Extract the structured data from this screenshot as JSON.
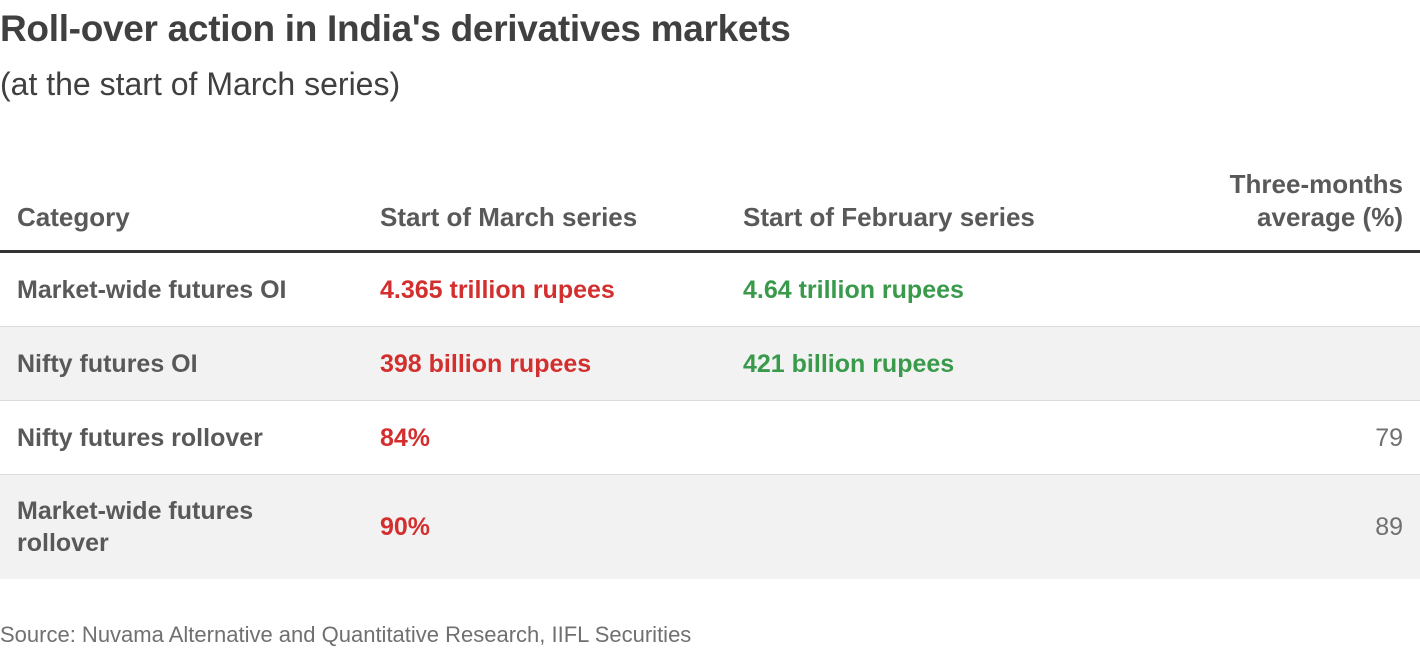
{
  "title": "Roll-over action in India's derivatives markets",
  "subtitle": "(at the start of March series)",
  "source": "Source: Nuvama Alternative and Quantitative Research, IIFL Securities",
  "colors": {
    "march": "#d32f2f",
    "february": "#3a9a4b",
    "header_rule": "#333333",
    "row_shade": "#f2f2f2"
  },
  "chart_data": {
    "type": "table",
    "columns": [
      "Category",
      "Start of March series",
      "Start of February series",
      "Three-months average (%)"
    ],
    "rows": [
      {
        "category": "Market-wide futures OI",
        "march": "4.365 trillion rupees",
        "february": "4.64 trillion rupees",
        "avg": ""
      },
      {
        "category": "Nifty futures OI",
        "march": "398 billion rupees",
        "february": "421 billion rupees",
        "avg": ""
      },
      {
        "category": "Nifty futures rollover",
        "march": "84%",
        "february": "",
        "avg": "79"
      },
      {
        "category": "Market-wide futures rollover",
        "march": "90%",
        "february": "",
        "avg": "89"
      }
    ]
  }
}
